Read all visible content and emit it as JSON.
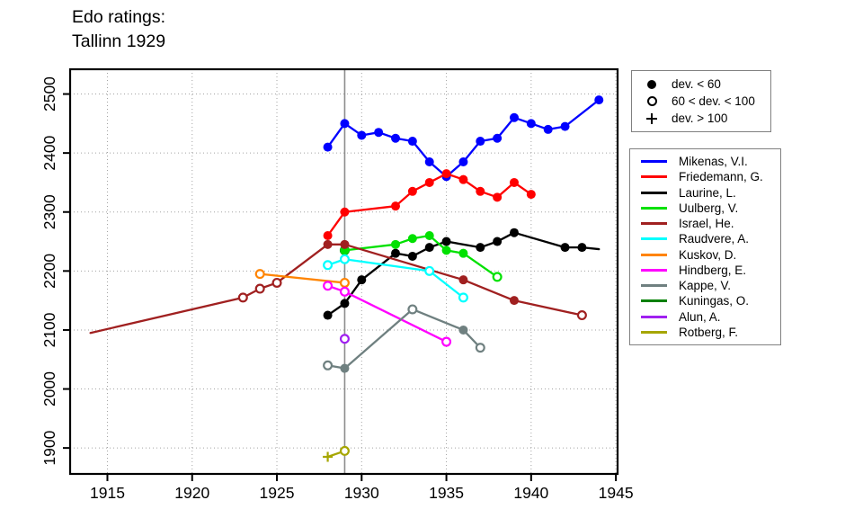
{
  "title": {
    "line1": "Edo ratings:",
    "line2": "Tallinn 1929"
  },
  "marker_legend": {
    "items": [
      {
        "marker": "filled",
        "label": "dev. < 60"
      },
      {
        "marker": "open",
        "label": "60 < dev. < 100"
      },
      {
        "marker": "plus",
        "label": "dev. > 100"
      }
    ]
  },
  "chart_data": {
    "type": "line",
    "title": "Edo ratings: Tallinn 1929",
    "xlabel": "",
    "ylabel": "",
    "x_ticks": [
      1915,
      1920,
      1925,
      1930,
      1935,
      1940,
      1945
    ],
    "y_ticks": [
      1900,
      2000,
      2100,
      2200,
      2300,
      2400,
      2500
    ],
    "xlim": [
      1912.8,
      1945.1
    ],
    "ylim": [
      1856,
      2542
    ],
    "grid": true,
    "legend_position": "right",
    "reference_line": {
      "x": 1929,
      "color": "#8C8C8C"
    },
    "marker_meaning": {
      "filled": "dev. < 60",
      "open": "60 < dev. < 100",
      "plus": "dev. > 100"
    },
    "draw_order": [
      9,
      0,
      1,
      2,
      3,
      4,
      5,
      6,
      7,
      8,
      10,
      11
    ],
    "series": [
      {
        "name": "Mikenas, V.I.",
        "color": "#0000FF",
        "points": [
          {
            "year": 1928,
            "rating": 2410,
            "marker": "filled"
          },
          {
            "year": 1929,
            "rating": 2450,
            "marker": "filled"
          },
          {
            "year": 1930,
            "rating": 2430,
            "marker": "filled"
          },
          {
            "year": 1931,
            "rating": 2435,
            "marker": "filled"
          },
          {
            "year": 1932,
            "rating": 2425,
            "marker": "filled"
          },
          {
            "year": 1933,
            "rating": 2420,
            "marker": "filled"
          },
          {
            "year": 1934,
            "rating": 2385,
            "marker": "filled"
          },
          {
            "year": 1935,
            "rating": 2360,
            "marker": "filled"
          },
          {
            "year": 1936,
            "rating": 2385,
            "marker": "filled"
          },
          {
            "year": 1937,
            "rating": 2420,
            "marker": "filled"
          },
          {
            "year": 1938,
            "rating": 2425,
            "marker": "filled"
          },
          {
            "year": 1939,
            "rating": 2460,
            "marker": "filled"
          },
          {
            "year": 1940,
            "rating": 2450,
            "marker": "filled"
          },
          {
            "year": 1941,
            "rating": 2440,
            "marker": "filled"
          },
          {
            "year": 1942,
            "rating": 2445,
            "marker": "filled"
          },
          {
            "year": 1944,
            "rating": 2490,
            "marker": "filled"
          }
        ]
      },
      {
        "name": "Friedemann, G.",
        "color": "#FF0000",
        "points": [
          {
            "year": 1928,
            "rating": 2260,
            "marker": "filled"
          },
          {
            "year": 1929,
            "rating": 2300,
            "marker": "filled"
          },
          {
            "year": 1932,
            "rating": 2310,
            "marker": "filled"
          },
          {
            "year": 1933,
            "rating": 2335,
            "marker": "filled"
          },
          {
            "year": 1934,
            "rating": 2350,
            "marker": "filled"
          },
          {
            "year": 1935,
            "rating": 2365,
            "marker": "filled"
          },
          {
            "year": 1936,
            "rating": 2355,
            "marker": "filled"
          },
          {
            "year": 1937,
            "rating": 2335,
            "marker": "filled"
          },
          {
            "year": 1938,
            "rating": 2325,
            "marker": "filled"
          },
          {
            "year": 1939,
            "rating": 2350,
            "marker": "filled"
          },
          {
            "year": 1940,
            "rating": 2330,
            "marker": "filled"
          }
        ]
      },
      {
        "name": "Laurine, L.",
        "color": "#000000",
        "points": [
          {
            "year": 1928,
            "rating": 2125,
            "marker": "filled"
          },
          {
            "year": 1929,
            "rating": 2145,
            "marker": "filled"
          },
          {
            "year": 1930,
            "rating": 2185,
            "marker": "filled"
          },
          {
            "year": 1932,
            "rating": 2230,
            "marker": "filled"
          },
          {
            "year": 1933,
            "rating": 2225,
            "marker": "filled"
          },
          {
            "year": 1934,
            "rating": 2240,
            "marker": "filled"
          },
          {
            "year": 1935,
            "rating": 2250,
            "marker": "filled"
          },
          {
            "year": 1937,
            "rating": 2240,
            "marker": "filled"
          },
          {
            "year": 1938,
            "rating": 2250,
            "marker": "filled"
          },
          {
            "year": 1939,
            "rating": 2265,
            "marker": "filled"
          },
          {
            "year": 1942,
            "rating": 2240,
            "marker": "filled"
          },
          {
            "year": 1943,
            "rating": 2240,
            "marker": "filled"
          },
          {
            "year": 1944,
            "rating": 2237,
            "marker": "none"
          }
        ]
      },
      {
        "name": "Uulberg, V.",
        "color": "#00E100",
        "points": [
          {
            "year": 1929,
            "rating": 2235,
            "marker": "filled"
          },
          {
            "year": 1932,
            "rating": 2245,
            "marker": "filled"
          },
          {
            "year": 1933,
            "rating": 2255,
            "marker": "filled"
          },
          {
            "year": 1934,
            "rating": 2260,
            "marker": "filled"
          },
          {
            "year": 1935,
            "rating": 2235,
            "marker": "filled"
          },
          {
            "year": 1936,
            "rating": 2230,
            "marker": "filled"
          },
          {
            "year": 1938,
            "rating": 2190,
            "marker": "open"
          }
        ]
      },
      {
        "name": "Israel, He.",
        "color": "#A02020",
        "points": [
          {
            "year": 1914,
            "rating": 2095,
            "marker": "none"
          },
          {
            "year": 1923,
            "rating": 2155,
            "marker": "open"
          },
          {
            "year": 1924,
            "rating": 2170,
            "marker": "open"
          },
          {
            "year": 1925,
            "rating": 2180,
            "marker": "open"
          },
          {
            "year": 1928,
            "rating": 2245,
            "marker": "filled"
          },
          {
            "year": 1929,
            "rating": 2245,
            "marker": "filled"
          },
          {
            "year": 1936,
            "rating": 2185,
            "marker": "filled"
          },
          {
            "year": 1939,
            "rating": 2150,
            "marker": "filled"
          },
          {
            "year": 1943,
            "rating": 2125,
            "marker": "open"
          }
        ]
      },
      {
        "name": "Raudvere, A.",
        "color": "#00FFFF",
        "points": [
          {
            "year": 1928,
            "rating": 2210,
            "marker": "open"
          },
          {
            "year": 1929,
            "rating": 2220,
            "marker": "open"
          },
          {
            "year": 1934,
            "rating": 2200,
            "marker": "open"
          },
          {
            "year": 1936,
            "rating": 2155,
            "marker": "open"
          }
        ]
      },
      {
        "name": "Kuskov, D.",
        "color": "#FF8400",
        "points": [
          {
            "year": 1924,
            "rating": 2195,
            "marker": "open"
          },
          {
            "year": 1929,
            "rating": 2180,
            "marker": "open"
          }
        ]
      },
      {
        "name": "Hindberg, E.",
        "color": "#FF00FF",
        "points": [
          {
            "year": 1928,
            "rating": 2175,
            "marker": "open"
          },
          {
            "year": 1929,
            "rating": 2165,
            "marker": "open"
          },
          {
            "year": 1935,
            "rating": 2080,
            "marker": "open"
          }
        ]
      },
      {
        "name": "Kappe, V.",
        "color": "#6F8080",
        "points": [
          {
            "year": 1928,
            "rating": 2040,
            "marker": "open"
          },
          {
            "year": 1929,
            "rating": 2035,
            "marker": "filled"
          },
          {
            "year": 1933,
            "rating": 2135,
            "marker": "open"
          },
          {
            "year": 1936,
            "rating": 2100,
            "marker": "filled"
          },
          {
            "year": 1937,
            "rating": 2070,
            "marker": "open"
          }
        ]
      },
      {
        "name": "Kuningas, O.",
        "color": "#008000",
        "points": [
          {
            "year": 1929,
            "rating": 2235,
            "marker": "open"
          }
        ]
      },
      {
        "name": "Alun, A.",
        "color": "#A020F0",
        "points": [
          {
            "year": 1929,
            "rating": 2085,
            "marker": "open"
          }
        ]
      },
      {
        "name": "Rotberg, F.",
        "color": "#A6A600",
        "points": [
          {
            "year": 1928,
            "rating": 1885,
            "marker": "plus"
          },
          {
            "year": 1929,
            "rating": 1895,
            "marker": "open"
          }
        ]
      }
    ]
  }
}
